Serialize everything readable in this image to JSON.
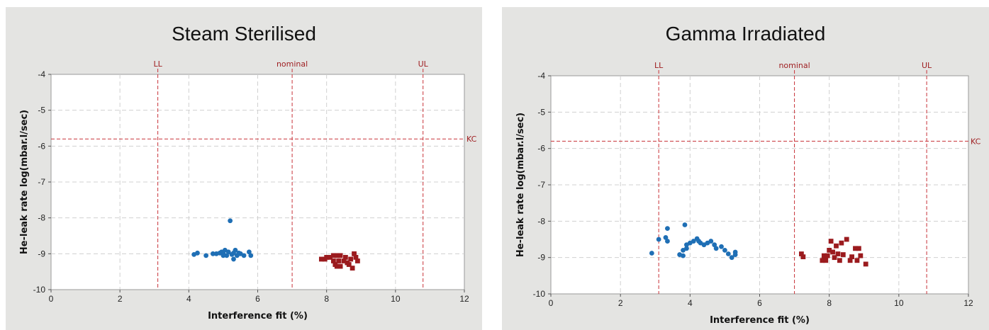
{
  "colors": {
    "panel_bg": "#e4e4e2",
    "plot_bg": "#ffffff",
    "grid": "#d0d0d0",
    "reference_line": "#c83238",
    "reference_text": "#9e1c1f",
    "series_low": "#1f6fb5",
    "series_high": "#9b1b1e"
  },
  "chart_data": [
    {
      "type": "scatter",
      "title": "Steam Sterilised",
      "xlabel": "Interference fit (%)",
      "ylabel": "He-leak rate log(mbar.l/sec)",
      "xlim": [
        0,
        12
      ],
      "ylim": [
        -10,
        -4
      ],
      "xticks": [
        "0",
        "2",
        "4",
        "6",
        "8",
        "10",
        "12"
      ],
      "yticks": [
        "-10",
        "-9",
        "-8",
        "-7",
        "-6",
        "-5",
        "-4"
      ],
      "grid": true,
      "reference_lines": [
        {
          "axis": "x",
          "value": 3.1,
          "label": "LL"
        },
        {
          "axis": "x",
          "value": 7.0,
          "label": "nominal"
        },
        {
          "axis": "x",
          "value": 10.8,
          "label": "UL"
        },
        {
          "axis": "y",
          "value": -5.8,
          "label": "KC"
        }
      ],
      "series": [
        {
          "marker": "circle",
          "color": "#1f6fb5",
          "points": [
            [
              4.15,
              -9.02
            ],
            [
              4.25,
              -8.98
            ],
            [
              4.5,
              -9.05
            ],
            [
              4.7,
              -9.0
            ],
            [
              4.8,
              -9.0
            ],
            [
              4.9,
              -8.98
            ],
            [
              4.95,
              -8.95
            ],
            [
              5.0,
              -9.0
            ],
            [
              5.05,
              -8.9
            ],
            [
              5.1,
              -9.05
            ],
            [
              5.15,
              -8.95
            ],
            [
              5.2,
              -8.08
            ],
            [
              5.25,
              -9.02
            ],
            [
              5.3,
              -9.15
            ],
            [
              5.35,
              -8.9
            ],
            [
              5.4,
              -9.05
            ],
            [
              5.45,
              -8.98
            ],
            [
              5.5,
              -9.0
            ],
            [
              5.6,
              -9.05
            ],
            [
              5.75,
              -8.95
            ],
            [
              5.8,
              -9.05
            ],
            [
              5.0,
              -9.05
            ],
            [
              5.3,
              -8.98
            ]
          ]
        },
        {
          "marker": "square",
          "color": "#9b1b1e",
          "points": [
            [
              7.85,
              -9.15
            ],
            [
              7.95,
              -9.15
            ],
            [
              8.0,
              -9.1
            ],
            [
              8.1,
              -9.1
            ],
            [
              8.2,
              -9.05
            ],
            [
              8.2,
              -9.2
            ],
            [
              8.25,
              -9.3
            ],
            [
              8.3,
              -9.05
            ],
            [
              8.3,
              -9.35
            ],
            [
              8.35,
              -9.2
            ],
            [
              8.4,
              -9.05
            ],
            [
              8.4,
              -9.35
            ],
            [
              8.5,
              -9.2
            ],
            [
              8.55,
              -9.1
            ],
            [
              8.6,
              -9.25
            ],
            [
              8.65,
              -9.3
            ],
            [
              8.7,
              -9.15
            ],
            [
              8.75,
              -9.4
            ],
            [
              8.8,
              -9.0
            ],
            [
              8.85,
              -9.1
            ],
            [
              8.9,
              -9.2
            ]
          ]
        }
      ]
    },
    {
      "type": "scatter",
      "title": "Gamma Irradiated",
      "xlabel": "Interference fit (%)",
      "ylabel": "He-leak rate log(mbar.l/sec)",
      "xlim": [
        0,
        12
      ],
      "ylim": [
        -10,
        -4
      ],
      "xticks": [
        "0",
        "2",
        "4",
        "6",
        "8",
        "10",
        "12"
      ],
      "yticks": [
        "-10",
        "-9",
        "-8",
        "-7",
        "-6",
        "-5",
        "-4"
      ],
      "grid": true,
      "reference_lines": [
        {
          "axis": "x",
          "value": 3.1,
          "label": "LL"
        },
        {
          "axis": "x",
          "value": 7.0,
          "label": "nominal"
        },
        {
          "axis": "x",
          "value": 10.8,
          "label": "UL"
        },
        {
          "axis": "y",
          "value": -5.8,
          "label": "KC"
        }
      ],
      "series": [
        {
          "marker": "circle",
          "color": "#1f6fb5",
          "points": [
            [
              2.9,
              -8.88
            ],
            [
              3.1,
              -8.5
            ],
            [
              3.3,
              -8.45
            ],
            [
              3.35,
              -8.2
            ],
            [
              3.35,
              -8.55
            ],
            [
              3.7,
              -8.92
            ],
            [
              3.8,
              -8.95
            ],
            [
              3.8,
              -8.8
            ],
            [
              3.85,
              -8.1
            ],
            [
              3.9,
              -8.75
            ],
            [
              3.9,
              -8.65
            ],
            [
              4.0,
              -8.6
            ],
            [
              4.1,
              -8.55
            ],
            [
              4.2,
              -8.48
            ],
            [
              4.25,
              -8.55
            ],
            [
              4.3,
              -8.6
            ],
            [
              4.4,
              -8.65
            ],
            [
              4.5,
              -8.6
            ],
            [
              4.6,
              -8.55
            ],
            [
              4.7,
              -8.65
            ],
            [
              4.75,
              -8.75
            ],
            [
              4.9,
              -8.7
            ],
            [
              5.0,
              -8.8
            ],
            [
              5.1,
              -8.9
            ],
            [
              5.2,
              -9.0
            ],
            [
              5.3,
              -8.85
            ],
            [
              5.3,
              -8.92
            ]
          ]
        },
        {
          "marker": "square",
          "color": "#9b1b1e",
          "points": [
            [
              7.2,
              -8.9
            ],
            [
              7.25,
              -8.98
            ],
            [
              7.8,
              -9.08
            ],
            [
              7.85,
              -8.95
            ],
            [
              7.9,
              -9.08
            ],
            [
              7.95,
              -8.95
            ],
            [
              8.0,
              -8.8
            ],
            [
              8.05,
              -8.55
            ],
            [
              8.1,
              -8.85
            ],
            [
              8.15,
              -9.0
            ],
            [
              8.2,
              -8.68
            ],
            [
              8.25,
              -8.9
            ],
            [
              8.3,
              -9.08
            ],
            [
              8.35,
              -8.6
            ],
            [
              8.4,
              -8.92
            ],
            [
              8.5,
              -8.5
            ],
            [
              8.6,
              -9.08
            ],
            [
              8.65,
              -8.98
            ],
            [
              8.75,
              -8.75
            ],
            [
              8.8,
              -9.08
            ],
            [
              8.85,
              -8.75
            ],
            [
              8.9,
              -8.95
            ],
            [
              9.05,
              -9.18
            ]
          ]
        }
      ]
    }
  ]
}
